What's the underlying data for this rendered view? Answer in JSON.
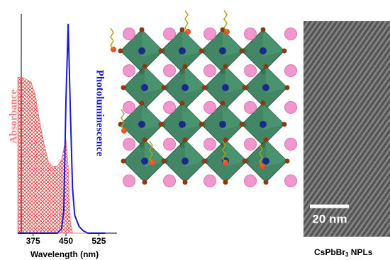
{
  "chart_data": {
    "type": "line",
    "x_label": "Wavelength (nm)",
    "x": [
      340,
      350,
      360,
      370,
      380,
      390,
      400,
      410,
      420,
      430,
      440,
      445,
      450,
      455,
      460,
      465,
      470,
      480,
      490,
      500,
      520,
      540
    ],
    "xlim": [
      335,
      560
    ],
    "xticks": [
      375,
      450,
      525
    ],
    "ylim": [
      0,
      1
    ],
    "series": [
      {
        "name": "Absorbance",
        "color": "#f08080",
        "fill": "hatch",
        "values": [
          0.7,
          0.7,
          0.69,
          0.68,
          0.62,
          0.5,
          0.4,
          0.32,
          0.3,
          0.3,
          0.33,
          0.38,
          0.42,
          0.3,
          0.05,
          0,
          0,
          0,
          0,
          0,
          0,
          0
        ]
      },
      {
        "name": "Photoluminescence",
        "color": "#1a1acc",
        "values": [
          0,
          0,
          0,
          0,
          0,
          0,
          0,
          0,
          0,
          0,
          0.02,
          0.1,
          0.6,
          0.94,
          0.55,
          0.2,
          0.08,
          0.03,
          0.01,
          0,
          0,
          0
        ]
      }
    ]
  },
  "image": {
    "scale_bar": "20 nm",
    "caption": {
      "formula": "CsPbBr",
      "subscript": "3",
      "suffix": " NPLs"
    }
  }
}
